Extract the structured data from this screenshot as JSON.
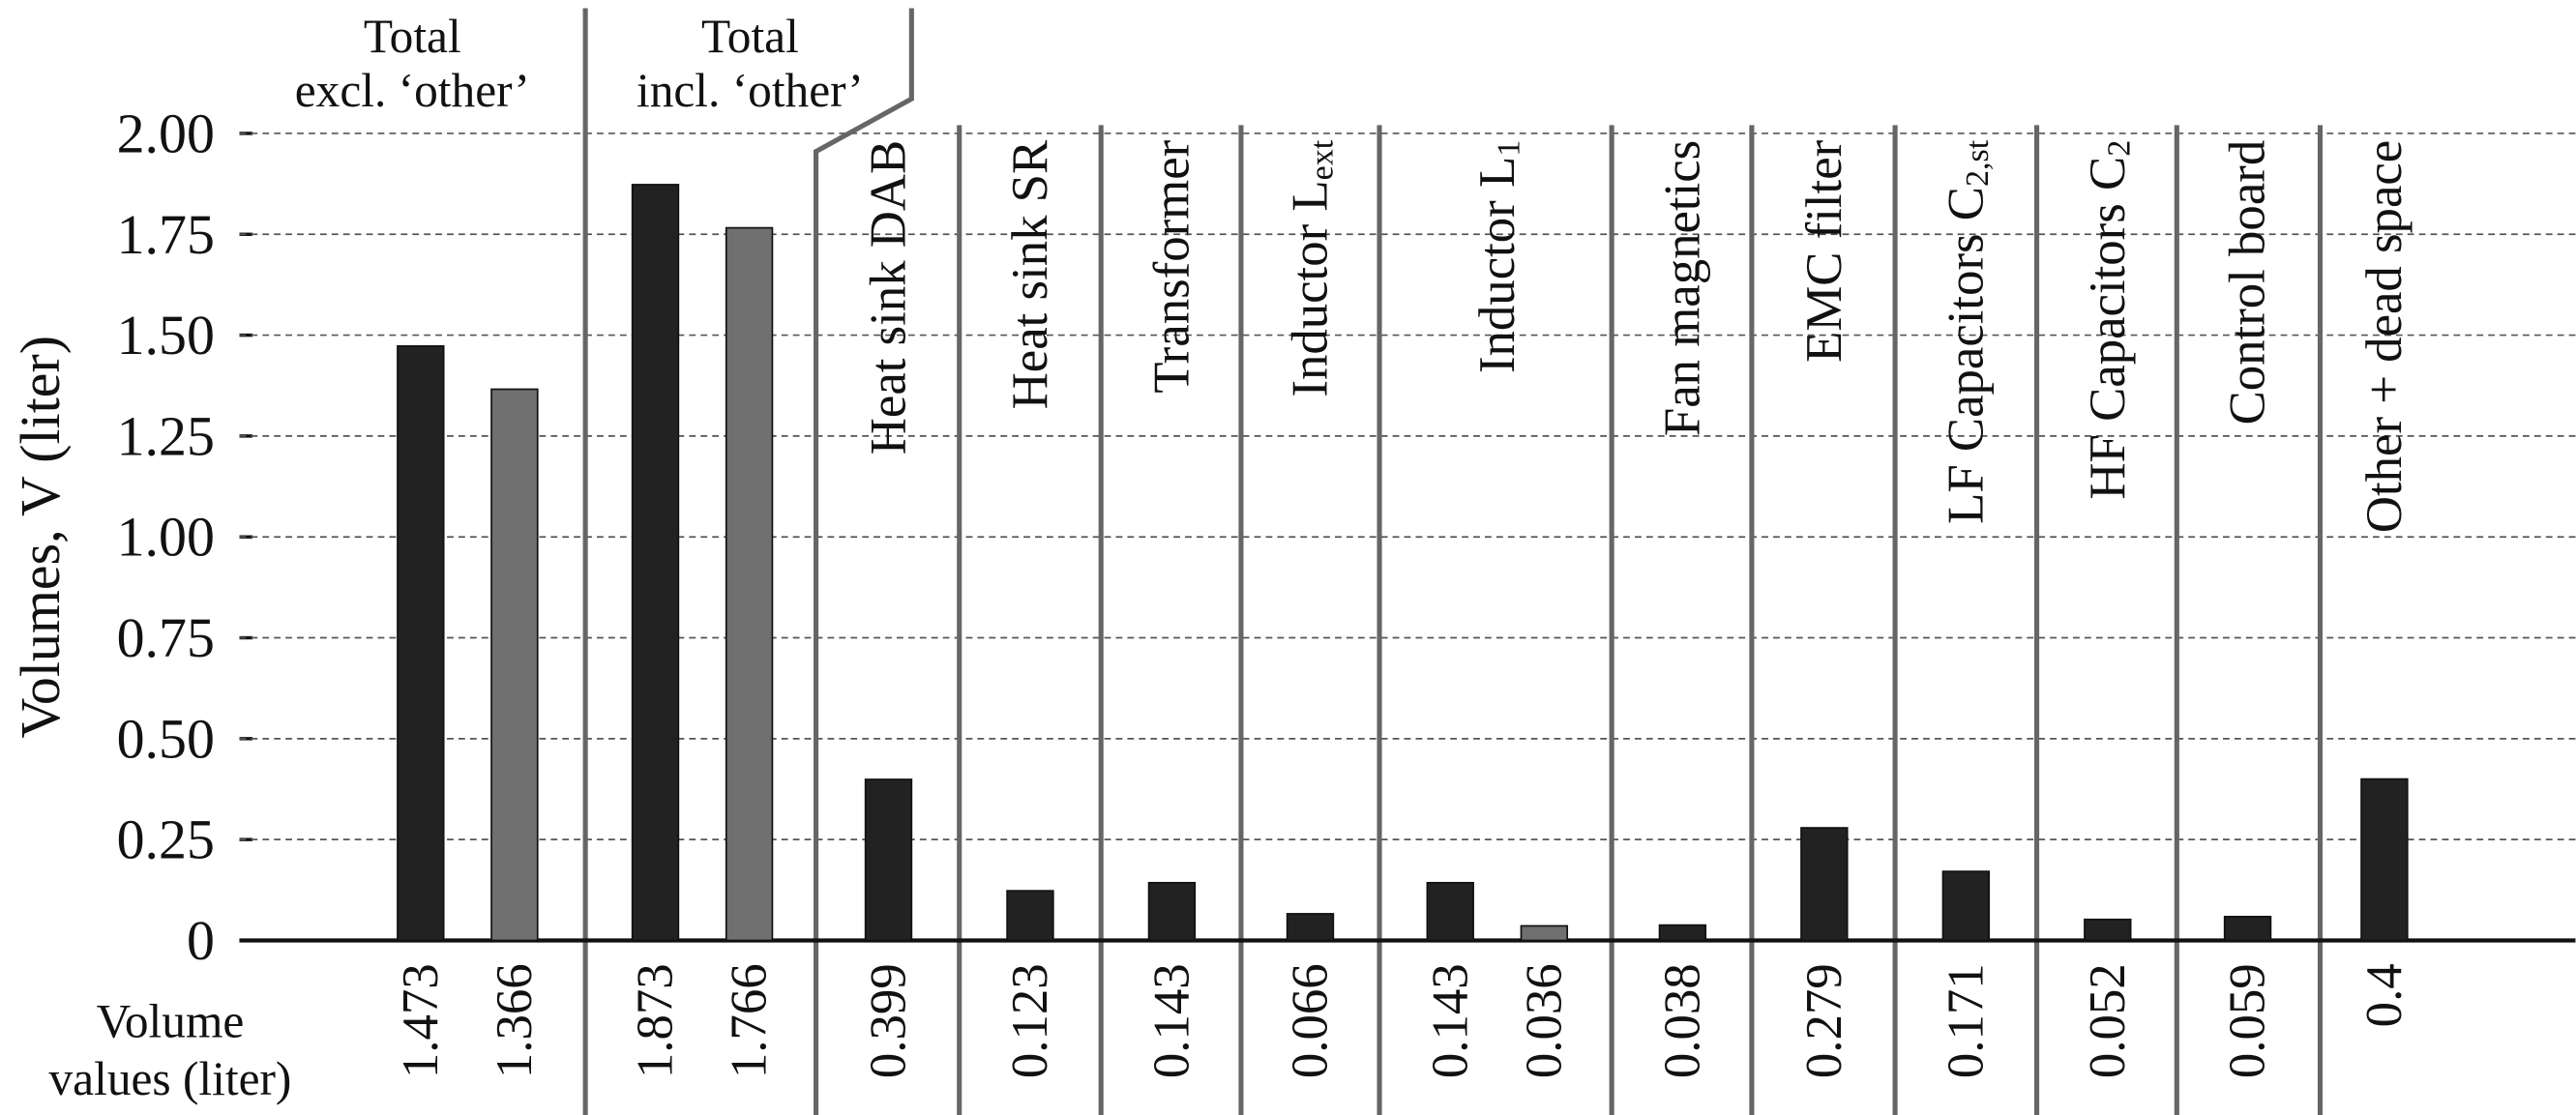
{
  "chart_data": {
    "type": "bar",
    "ylabel": "Volumes, V (liter)",
    "value_row_label": [
      "Volume",
      "values (liter)"
    ],
    "ylim": [
      0,
      2
    ],
    "yticks": [
      0,
      0.25,
      {
        "value": 0.5,
        "label": "0.50"
      },
      0.75,
      {
        "value": 1,
        "label": "1.00"
      },
      1.25,
      {
        "value": 1.5,
        "label": "1.50"
      },
      1.75,
      {
        "value": 2,
        "label": "2.00"
      }
    ],
    "grid": true,
    "colors": [
      "#222222",
      "#707070"
    ],
    "groups": [
      {
        "label": [
          "Total",
          "excl. ‘other’"
        ],
        "values": [
          1.473,
          1.366
        ]
      },
      {
        "label": [
          "Total",
          "incl. ‘other’"
        ],
        "values": [
          1.873,
          1.766
        ]
      },
      {
        "label": "Heat sink DAB",
        "values": [
          0.399
        ]
      },
      {
        "label": "Heat sink SR",
        "values": [
          0.123
        ]
      },
      {
        "label": "Transformer",
        "values": [
          0.143
        ]
      },
      {
        "label": "Inductor L",
        "label_sub": "ext",
        "values": [
          0.066
        ]
      },
      {
        "label": "Inductor L",
        "label_sub": "1",
        "values": [
          0.143,
          0.036
        ]
      },
      {
        "label": "Fan magnetics",
        "values": [
          0.038
        ]
      },
      {
        "label": "EMC filter",
        "values": [
          0.279
        ]
      },
      {
        "label": "LF Capacitors C",
        "label_sub": "2,st",
        "values": [
          0.171
        ]
      },
      {
        "label": "HF Capacitors C",
        "label_sub": "2",
        "values": [
          0.052
        ]
      },
      {
        "label": "Control board",
        "values": [
          0.059
        ]
      },
      {
        "label": "Other + dead space",
        "values": [
          0.4
        ]
      }
    ]
  }
}
